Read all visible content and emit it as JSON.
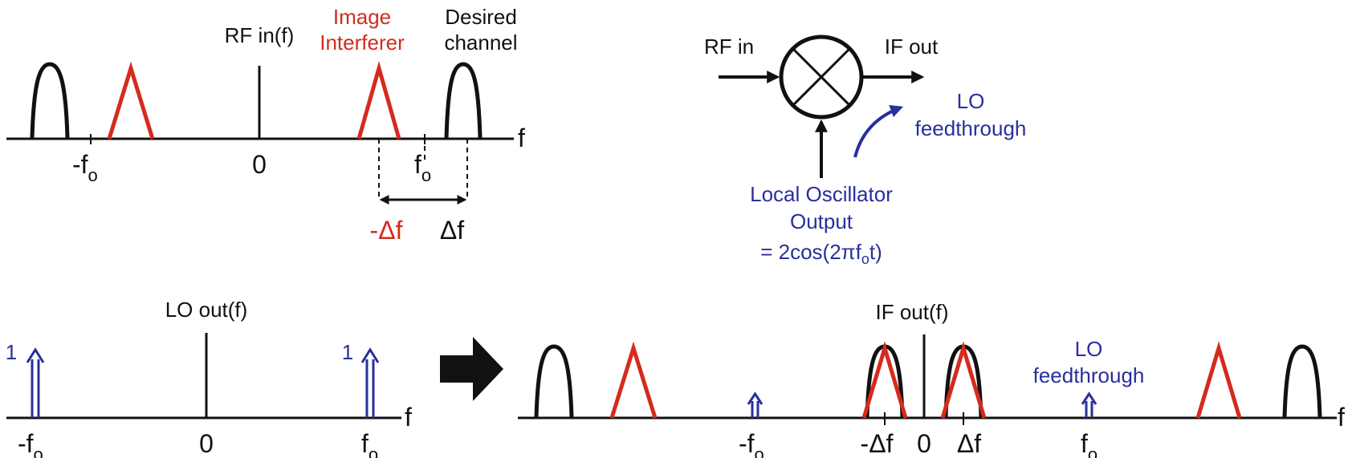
{
  "colors": {
    "desired": "#111111",
    "image": "#d42b1e",
    "lo": "#2a2f9c"
  },
  "rf_spectrum": {
    "title": "RF in(f)",
    "image_label_1": "Image",
    "image_label_2": "Interferer",
    "desired_label_1": "Desired",
    "desired_label_2": "channel",
    "axis_label": "f",
    "ticks": {
      "neg_fo": "-f",
      "zero": "0",
      "pos_fo": "f",
      "sub_o": "o"
    },
    "neg_delta": "-Δf",
    "pos_delta": "Δf"
  },
  "mixer": {
    "rf_in": "RF in",
    "if_out": "IF out",
    "lo_feedthrough_1": "LO",
    "lo_feedthrough_2": "feedthrough",
    "lo_output_1": "Local Oscillator",
    "lo_output_2": "Output",
    "lo_equation": "= 2cos(2πf",
    "lo_equation_sub": "o",
    "lo_equation_end": "t)"
  },
  "lo_spectrum": {
    "title": "LO out(f)",
    "impulse_left_value": "1",
    "impulse_right_value": "1",
    "axis_label": "f",
    "ticks": {
      "neg_fo": "-f",
      "zero": "0",
      "pos_fo": "f",
      "sub_o": "o"
    }
  },
  "if_spectrum": {
    "title": "IF out(f)",
    "lo_feedthrough_1": "LO",
    "lo_feedthrough_2": "feedthrough",
    "axis_label": "f",
    "ticks": {
      "neg_fo": "-f",
      "neg_delta": "-Δf",
      "zero": "0",
      "pos_delta": "Δf",
      "pos_fo": "f",
      "sub_o": "o"
    }
  }
}
